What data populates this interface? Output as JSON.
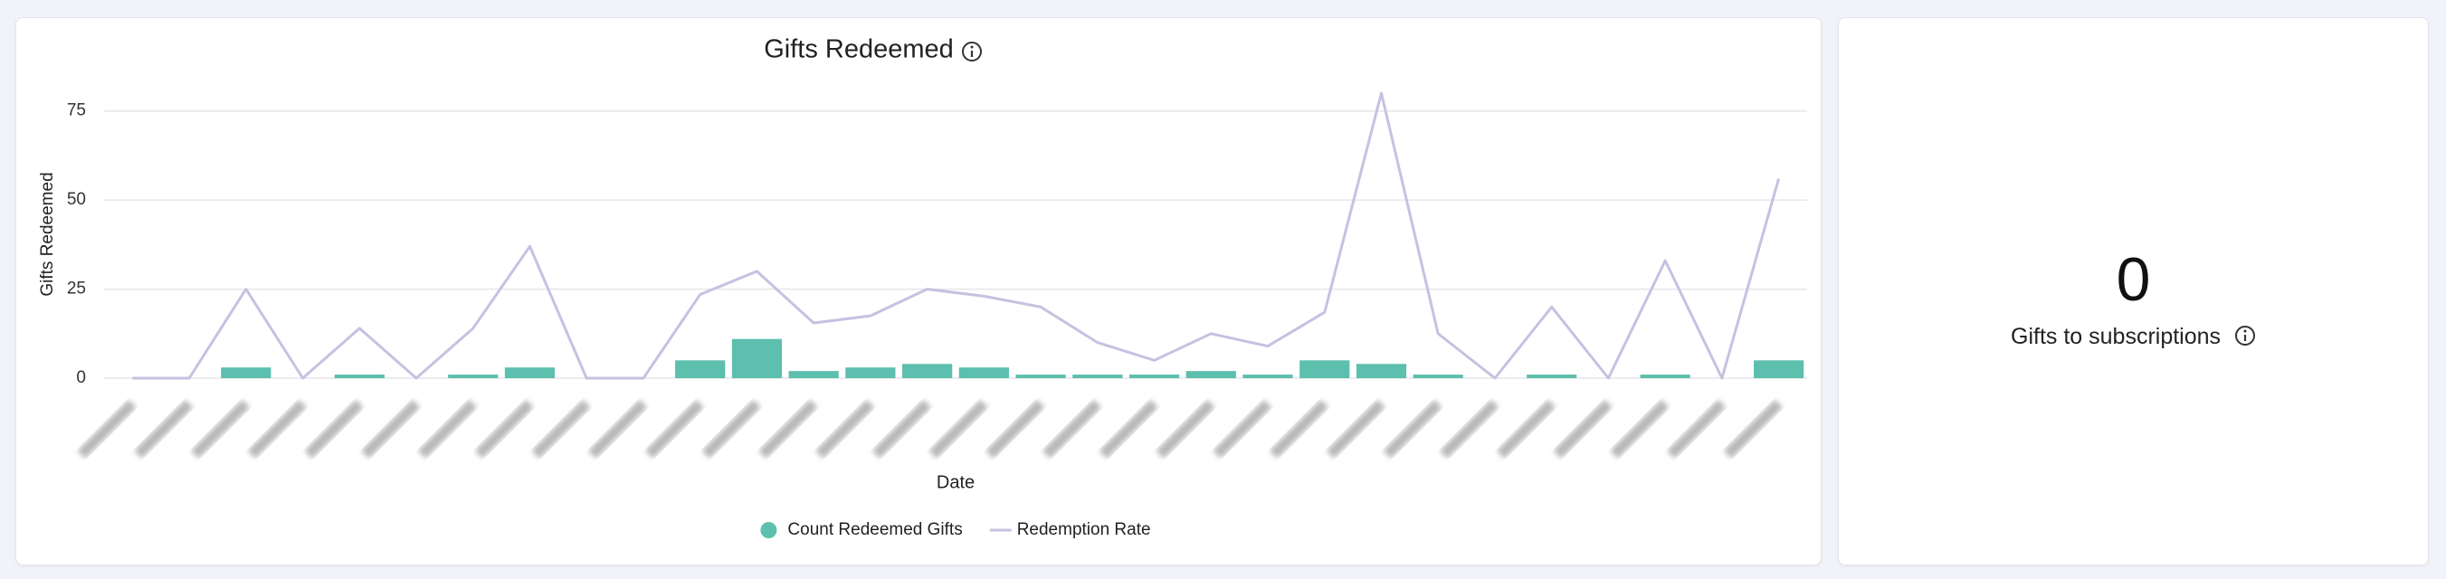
{
  "chart_data": {
    "type": "combo",
    "title": "Gifts Redeemed",
    "xlabel": "Date",
    "ylabel": "Gifts Redeemed",
    "categories": [
      null,
      null,
      null,
      null,
      null,
      null,
      null,
      null,
      null,
      null,
      null,
      null,
      null,
      null,
      null,
      null,
      null,
      null,
      null,
      null,
      null,
      null,
      null,
      null,
      null,
      null,
      null,
      null,
      null,
      null
    ],
    "series": [
      {
        "name": "Count Redeemed Gifts",
        "type": "bar",
        "color": "#5dbfae",
        "values": [
          0,
          0,
          3,
          0,
          1,
          0,
          1,
          3,
          0,
          0,
          5,
          11,
          2,
          3,
          4,
          3,
          1,
          1,
          1,
          2,
          1,
          5,
          4,
          1,
          0,
          1,
          0,
          1,
          0,
          5
        ]
      },
      {
        "name": "Redemption Rate",
        "type": "line",
        "color": "#c6c1e1",
        "values": [
          0,
          0,
          25,
          0,
          14,
          0,
          14,
          37,
          0,
          0,
          23.5,
          30,
          15.5,
          17.5,
          25,
          23,
          20,
          10,
          5,
          12.5,
          9,
          18.5,
          80,
          12.5,
          0,
          20,
          0,
          33,
          0,
          56
        ]
      }
    ],
    "ylim": [
      0,
      80
    ],
    "yticks": [
      0,
      25,
      50,
      75
    ],
    "grid": true
  },
  "stat": {
    "value": 0,
    "label": "Gifts to subscriptions"
  }
}
